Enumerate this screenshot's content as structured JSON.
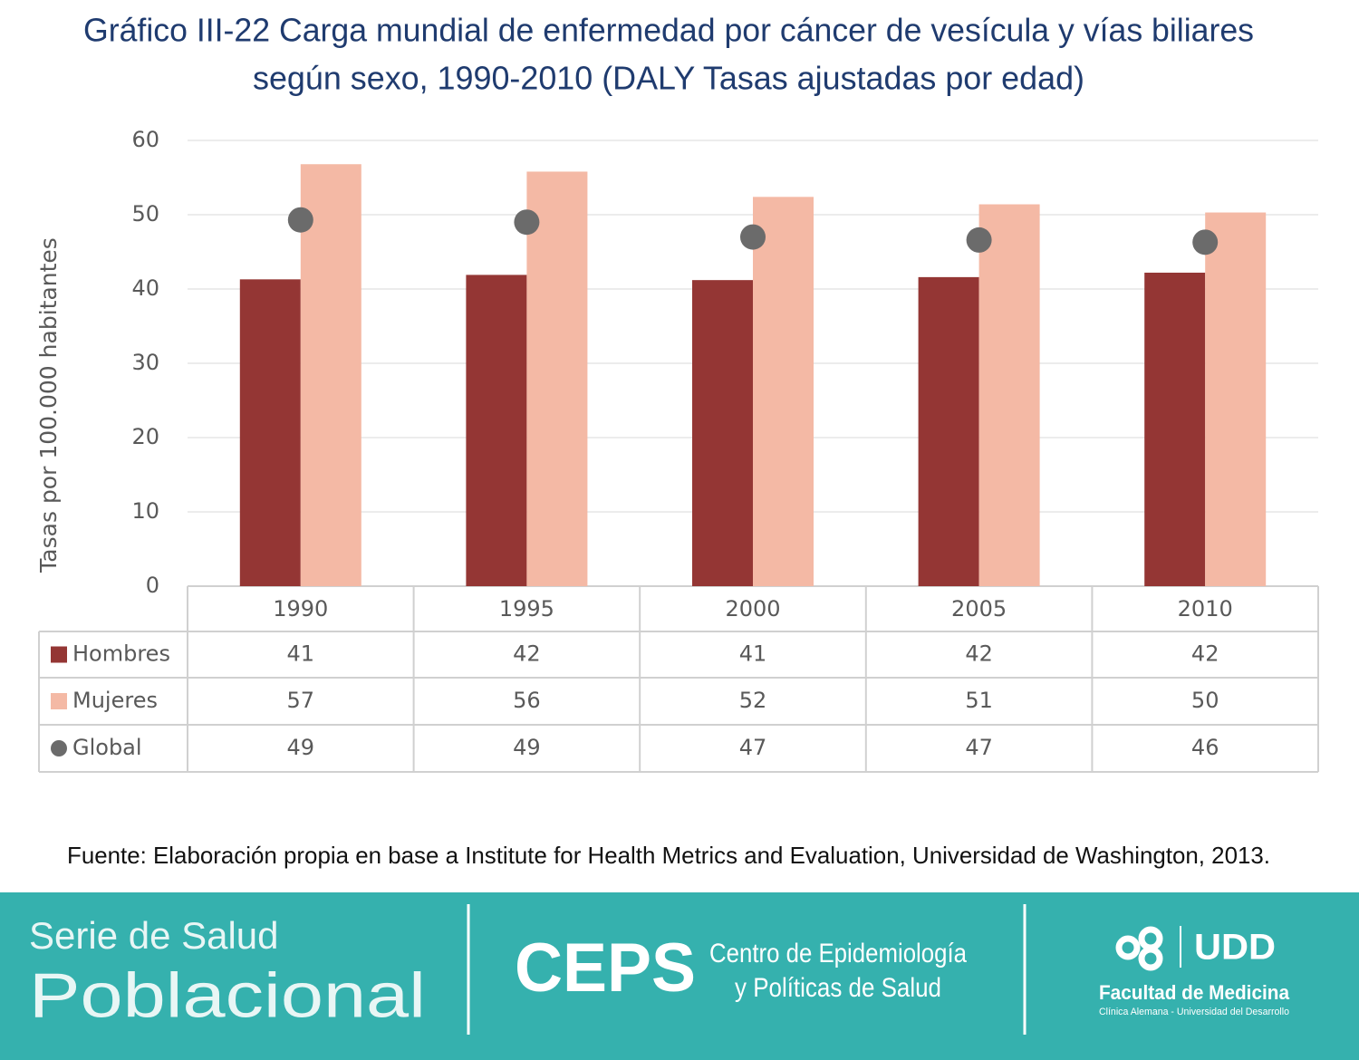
{
  "chart_data": {
    "type": "bar",
    "title": [
      "Gráfico III-22 Carga mundial de enfermedad por cáncer de vesícula y vías biliares",
      "según sexo, 1990-2010 (DALY Tasas ajustadas por edad)"
    ],
    "y_label": "Tasas por 100.000 habitantes",
    "categories": [
      "1990",
      "1995",
      "2000",
      "2005",
      "2010"
    ],
    "series": [
      {
        "name": "Hombres",
        "type": "bar",
        "color": "#943634",
        "values": [
          41.3,
          41.9,
          41.2,
          41.6,
          42.2
        ],
        "value_labels": [
          "41",
          "42",
          "41",
          "42",
          "42"
        ]
      },
      {
        "name": "Mujeres",
        "type": "bar",
        "color": "#f4b9a5",
        "values": [
          56.8,
          55.8,
          52.4,
          51.4,
          50.3
        ],
        "value_labels": [
          "57",
          "56",
          "52",
          "51",
          "50"
        ]
      },
      {
        "name": "Global",
        "type": "scatter",
        "color": "#6b6b6b",
        "values": [
          49.3,
          49.0,
          47.0,
          46.6,
          46.3
        ],
        "value_labels": [
          "49",
          "49",
          "47",
          "47",
          "46"
        ]
      }
    ],
    "ylim": [
      0,
      60
    ],
    "yticks": [
      0,
      10,
      20,
      30,
      40,
      50,
      60
    ],
    "grid": true,
    "source": "Fuente: Elaboración propia en base a Institute for Health Metrics and Evaluation, Universidad de Washington, 2013."
  },
  "footer": {
    "series_line1": "Serie de Salud",
    "series_line2": "Poblacional",
    "ceps": "CEPS",
    "ceps_line1": "Centro de Epidemiología",
    "ceps_line2": "y Políticas de Salud",
    "udd": "UDD",
    "faculty": "Facultad de Medicina",
    "faculty_sub": "Clínica Alemana - Universidad del Desarrollo"
  }
}
